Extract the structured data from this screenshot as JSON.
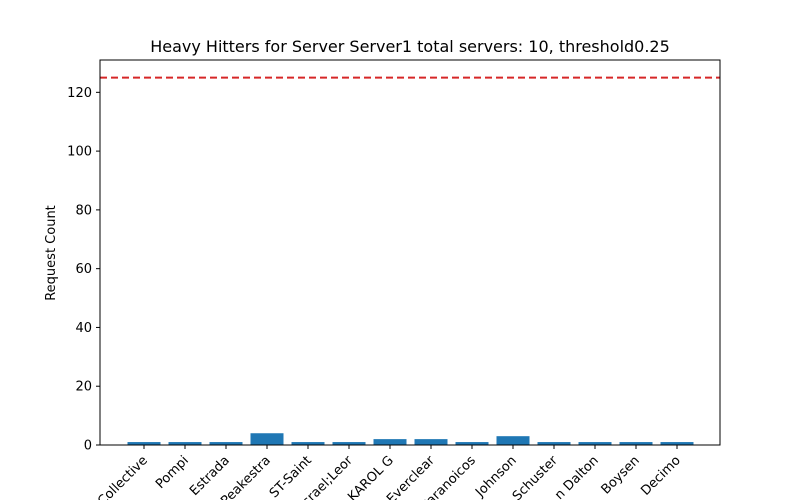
{
  "chart_data": {
    "type": "bar",
    "title": "Heavy Hitters for Server Server1 total servers: 10, threshold0.25",
    "xlabel": "",
    "ylabel": "Request Count",
    "ylim": [
      0,
      131
    ],
    "yticks": [
      0,
      20,
      40,
      60,
      80,
      100,
      120
    ],
    "categories": [
      "Collective",
      "Pompi",
      "Estrada",
      "Peakestra",
      "ST-Saint",
      "Israel;Leor",
      "KAROL G",
      "Everclear",
      "Paranoicos",
      "Johnson",
      "Schuster",
      "n Dalton",
      "Boysen",
      "Decimo"
    ],
    "values": [
      1,
      1,
      1,
      4,
      1,
      1,
      2,
      2,
      1,
      3,
      1,
      1,
      1,
      1
    ],
    "threshold": 125,
    "bar_color": "#1f77b4",
    "threshold_color": "#d62728",
    "threshold_style": "dashed",
    "grid": false
  }
}
